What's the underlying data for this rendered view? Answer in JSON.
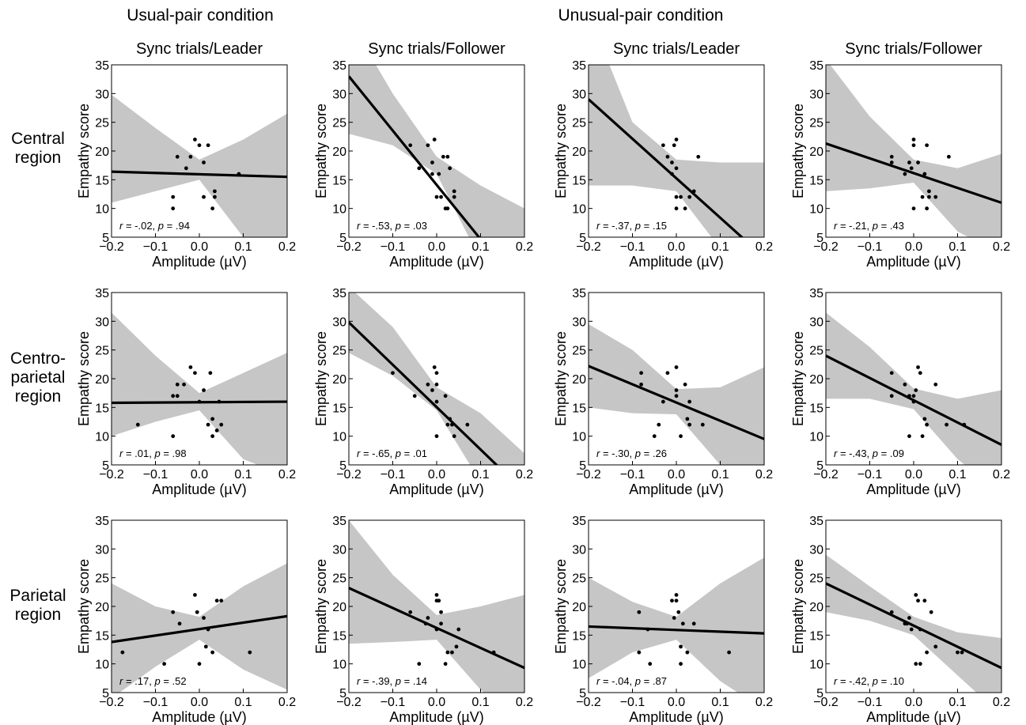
{
  "conditions": [
    "Usual-pair condition",
    "Unusual-pair condition"
  ],
  "rows": [
    {
      "line1": "Central",
      "line2": "region"
    },
    {
      "line1": "Centro-",
      "line2": "parietal",
      "line3": "region"
    },
    {
      "line1": "Parietal",
      "line2": "region"
    }
  ],
  "axis": {
    "xlabel": "Amplitude (µV)",
    "ylabel": "Empathy score",
    "xlim": [
      -0.2,
      0.2
    ],
    "ylim": [
      5,
      35
    ],
    "xticks": [
      "−0.2",
      "−0.1",
      "0.0",
      "0.1",
      "0.2"
    ],
    "yticks": [
      "5",
      "10",
      "15",
      "20",
      "25",
      "30",
      "35"
    ]
  },
  "colors": {
    "band": "#c6c6c6",
    "line": "#000000",
    "points": "#000000"
  },
  "chart_data": [
    {
      "type": "scatter",
      "title": "Sync trials/Leader",
      "row": 0,
      "col": 0,
      "fit": {
        "y_at_xmin": 16.4,
        "y_at_xmax": 15.5
      },
      "band": [
        [
          -0.2,
          11.0,
          29.8
        ],
        [
          -0.1,
          13.0,
          24.0
        ],
        [
          0.0,
          15.0,
          18.5
        ],
        [
          0.1,
          5.0,
          22.0
        ],
        [
          0.2,
          3.0,
          26.5
        ]
      ],
      "points": [
        [
          -0.06,
          10
        ],
        [
          -0.06,
          12
        ],
        [
          -0.05,
          19
        ],
        [
          -0.03,
          17
        ],
        [
          -0.02,
          19
        ],
        [
          -0.01,
          22
        ],
        [
          0.0,
          21
        ],
        [
          0.01,
          18
        ],
        [
          0.01,
          12
        ],
        [
          0.02,
          21
        ],
        [
          0.03,
          10
        ],
        [
          0.035,
          13
        ],
        [
          0.035,
          12
        ],
        [
          0.09,
          16
        ]
      ],
      "annotation": {
        "r_label": "r",
        "r_value": " = -.02, ",
        "p_label": "p",
        "p_value": " = .94"
      }
    },
    {
      "type": "scatter",
      "title": "Sync trials/Follower",
      "row": 0,
      "col": 1,
      "fit": {
        "y_at_xmin": 33,
        "y_at_xmax": -4.8
      },
      "band": [
        [
          -0.2,
          23.0,
          43.0
        ],
        [
          -0.1,
          21.0,
          30.0
        ],
        [
          0.0,
          16.0,
          19.0
        ],
        [
          0.1,
          1.0,
          14.0
        ],
        [
          0.2,
          -10.0,
          10.0
        ]
      ],
      "points": [
        [
          -0.06,
          21
        ],
        [
          -0.04,
          17
        ],
        [
          -0.02,
          21
        ],
        [
          -0.01,
          18
        ],
        [
          -0.01,
          16
        ],
        [
          -0.005,
          22
        ],
        [
          0.0,
          12
        ],
        [
          0.005,
          16
        ],
        [
          0.01,
          12
        ],
        [
          0.015,
          19
        ],
        [
          0.02,
          10
        ],
        [
          0.025,
          10
        ],
        [
          0.025,
          19
        ],
        [
          0.03,
          17
        ],
        [
          0.04,
          13
        ],
        [
          0.04,
          12
        ]
      ],
      "annotation": {
        "r_label": "r",
        "r_value": " = -.53, ",
        "p_label": "p",
        "p_value": " = .03"
      }
    },
    {
      "type": "scatter",
      "title": "Sync trials/Leader",
      "row": 0,
      "col": 2,
      "fit": {
        "y_at_xmin": 29,
        "y_at_xmax": 1.5
      },
      "band": [
        [
          -0.2,
          14.0,
          44.0
        ],
        [
          -0.1,
          14.0,
          25.0
        ],
        [
          0.0,
          13.0,
          18.5
        ],
        [
          0.1,
          3.0,
          18.0
        ],
        [
          0.2,
          -8.0,
          18.0
        ]
      ],
      "points": [
        [
          -0.03,
          21
        ],
        [
          -0.02,
          19
        ],
        [
          -0.01,
          18
        ],
        [
          -0.01,
          16
        ],
        [
          -0.005,
          21
        ],
        [
          0.0,
          22
        ],
        [
          0.0,
          17
        ],
        [
          0.0,
          10
        ],
        [
          0.0,
          12
        ],
        [
          0.01,
          12
        ],
        [
          0.02,
          10
        ],
        [
          0.03,
          12
        ],
        [
          0.04,
          13
        ],
        [
          0.05,
          19
        ]
      ],
      "annotation": {
        "r_label": "r",
        "r_value": " = -.37, ",
        "p_label": "p",
        "p_value": " = .15"
      }
    },
    {
      "type": "scatter",
      "title": "Sync trials/Follower",
      "row": 0,
      "col": 3,
      "fit": {
        "y_at_xmin": 21.3,
        "y_at_xmax": 11
      },
      "band": [
        [
          -0.2,
          13.0,
          36.0
        ],
        [
          -0.1,
          13.5,
          26.0
        ],
        [
          0.0,
          14.5,
          18.5
        ],
        [
          0.1,
          6.0,
          17.0
        ],
        [
          0.2,
          2.0,
          19.5
        ]
      ],
      "points": [
        [
          -0.05,
          18
        ],
        [
          -0.05,
          19
        ],
        [
          -0.02,
          16
        ],
        [
          -0.01,
          18
        ],
        [
          -0.005,
          17
        ],
        [
          0.0,
          22
        ],
        [
          0.0,
          21
        ],
        [
          0.0,
          10
        ],
        [
          0.01,
          18
        ],
        [
          0.02,
          12
        ],
        [
          0.025,
          16
        ],
        [
          0.03,
          21
        ],
        [
          0.03,
          10
        ],
        [
          0.035,
          13
        ],
        [
          0.035,
          12
        ],
        [
          0.05,
          12
        ],
        [
          0.08,
          19
        ]
      ],
      "annotation": {
        "r_label": "r",
        "r_value": " = -.21, ",
        "p_label": "p",
        "p_value": " = .43"
      }
    },
    {
      "type": "scatter",
      "title": "",
      "row": 1,
      "col": 0,
      "fit": {
        "y_at_xmin": 15.8,
        "y_at_xmax": 16.0
      },
      "band": [
        [
          -0.2,
          10.0,
          31.5
        ],
        [
          -0.1,
          12.5,
          24.0
        ],
        [
          0.0,
          14.5,
          17.5
        ],
        [
          0.1,
          6.0,
          21.0
        ],
        [
          0.2,
          3.0,
          24.5
        ]
      ],
      "points": [
        [
          -0.14,
          12
        ],
        [
          -0.06,
          10
        ],
        [
          -0.06,
          17
        ],
        [
          -0.05,
          19
        ],
        [
          -0.05,
          17
        ],
        [
          -0.035,
          19
        ],
        [
          -0.02,
          22
        ],
        [
          -0.01,
          21
        ],
        [
          0.0,
          16
        ],
        [
          0.01,
          18
        ],
        [
          0.02,
          12
        ],
        [
          0.025,
          21
        ],
        [
          0.03,
          10
        ],
        [
          0.03,
          13
        ],
        [
          0.04,
          11
        ],
        [
          0.045,
          16
        ],
        [
          0.05,
          12
        ]
      ],
      "annotation": {
        "r_label": "r",
        "r_value": " = .01, ",
        "p_label": "p",
        "p_value": " = .98"
      }
    },
    {
      "type": "scatter",
      "title": "",
      "row": 1,
      "col": 1,
      "fit": {
        "y_at_xmin": 29.8,
        "y_at_xmax": 0.3
      },
      "band": [
        [
          -0.2,
          24.5,
          36.0
        ],
        [
          -0.1,
          20.5,
          29.0
        ],
        [
          0.0,
          14.5,
          18.5
        ],
        [
          0.1,
          2.0,
          14.0
        ],
        [
          0.2,
          -10.0,
          7.0
        ]
      ],
      "points": [
        [
          -0.1,
          21
        ],
        [
          -0.05,
          17
        ],
        [
          -0.02,
          19
        ],
        [
          -0.01,
          18
        ],
        [
          -0.005,
          22
        ],
        [
          0.0,
          21
        ],
        [
          0.0,
          19
        ],
        [
          0.0,
          16
        ],
        [
          0.0,
          10
        ],
        [
          0.02,
          17
        ],
        [
          0.025,
          12
        ],
        [
          0.03,
          13
        ],
        [
          0.035,
          12
        ],
        [
          0.04,
          10
        ],
        [
          0.07,
          12
        ]
      ],
      "annotation": {
        "r_label": "r",
        "r_value": " = -.65, ",
        "p_label": "p",
        "p_value": " = .01"
      }
    },
    {
      "type": "scatter",
      "title": "",
      "row": 1,
      "col": 2,
      "fit": {
        "y_at_xmin": 22.2,
        "y_at_xmax": 9.5
      },
      "band": [
        [
          -0.2,
          15.0,
          29.5
        ],
        [
          -0.1,
          14.0,
          25.0
        ],
        [
          0.0,
          13.8,
          18.2
        ],
        [
          0.1,
          5.0,
          18.5
        ],
        [
          0.2,
          -1.0,
          22.0
        ]
      ],
      "points": [
        [
          -0.08,
          21
        ],
        [
          -0.08,
          19
        ],
        [
          -0.05,
          10
        ],
        [
          -0.04,
          12
        ],
        [
          -0.03,
          16
        ],
        [
          -0.02,
          21
        ],
        [
          0.0,
          22
        ],
        [
          0.0,
          18
        ],
        [
          0.0,
          17
        ],
        [
          0.01,
          10
        ],
        [
          0.02,
          19
        ],
        [
          0.025,
          13
        ],
        [
          0.03,
          16
        ],
        [
          0.03,
          12
        ],
        [
          0.06,
          12
        ]
      ],
      "annotation": {
        "r_label": "r",
        "r_value": " = -.30, ",
        "p_label": "p",
        "p_value": " = .26"
      }
    },
    {
      "type": "scatter",
      "title": "",
      "row": 1,
      "col": 3,
      "fit": {
        "y_at_xmin": 24,
        "y_at_xmax": 8.5
      },
      "band": [
        [
          -0.2,
          16.5,
          31.5
        ],
        [
          -0.1,
          16.5,
          25.5
        ],
        [
          0.0,
          14.7,
          18.3
        ],
        [
          0.1,
          6.0,
          16.5
        ],
        [
          0.2,
          0.0,
          18.0
        ]
      ],
      "points": [
        [
          -0.05,
          21
        ],
        [
          -0.05,
          17
        ],
        [
          -0.02,
          19
        ],
        [
          -0.01,
          10
        ],
        [
          -0.01,
          17
        ],
        [
          0.0,
          16
        ],
        [
          0.0,
          17
        ],
        [
          0.005,
          18
        ],
        [
          0.01,
          22
        ],
        [
          0.015,
          21
        ],
        [
          0.02,
          10
        ],
        [
          0.025,
          13
        ],
        [
          0.03,
          12
        ],
        [
          0.05,
          19
        ],
        [
          0.075,
          12
        ],
        [
          0.115,
          12
        ]
      ],
      "annotation": {
        "r_label": "r",
        "r_value": " = -.43, ",
        "p_label": "p",
        "p_value": " = .09"
      }
    },
    {
      "type": "scatter",
      "title": "",
      "row": 2,
      "col": 0,
      "fit": {
        "y_at_xmin": 13.8,
        "y_at_xmax": 18.3
      },
      "band": [
        [
          -0.2,
          4.0,
          24.0
        ],
        [
          -0.1,
          9.5,
          20.0
        ],
        [
          0.0,
          14.2,
          18.2
        ],
        [
          0.1,
          9.0,
          23.5
        ],
        [
          0.2,
          5.5,
          27.5
        ]
      ],
      "points": [
        [
          -0.175,
          12
        ],
        [
          -0.08,
          10
        ],
        [
          -0.06,
          19
        ],
        [
          -0.045,
          17
        ],
        [
          -0.01,
          22
        ],
        [
          -0.005,
          19
        ],
        [
          0.0,
          10
        ],
        [
          0.01,
          18
        ],
        [
          0.015,
          13
        ],
        [
          0.02,
          16
        ],
        [
          0.03,
          12
        ],
        [
          0.04,
          21
        ],
        [
          0.05,
          21
        ],
        [
          0.115,
          12
        ]
      ],
      "annotation": {
        "r_label": "r",
        "r_value": " = .17, ",
        "p_label": "p",
        "p_value": " = .52"
      }
    },
    {
      "type": "scatter",
      "title": "",
      "row": 2,
      "col": 1,
      "fit": {
        "y_at_xmin": 23.2,
        "y_at_xmax": 9.3
      },
      "band": [
        [
          -0.2,
          13.5,
          35.0
        ],
        [
          -0.1,
          13.8,
          25.5
        ],
        [
          0.0,
          14.2,
          18.5
        ],
        [
          0.1,
          5.5,
          20.0
        ],
        [
          0.2,
          -1.0,
          22.0
        ]
      ],
      "points": [
        [
          -0.06,
          19
        ],
        [
          -0.04,
          10
        ],
        [
          -0.025,
          17
        ],
        [
          -0.02,
          18
        ],
        [
          0.0,
          22
        ],
        [
          0.0,
          21
        ],
        [
          0.0,
          16
        ],
        [
          0.005,
          21
        ],
        [
          0.01,
          17
        ],
        [
          0.01,
          19
        ],
        [
          0.02,
          10
        ],
        [
          0.025,
          12
        ],
        [
          0.035,
          12
        ],
        [
          0.045,
          13
        ],
        [
          0.05,
          16
        ],
        [
          0.13,
          12
        ]
      ],
      "annotation": {
        "r_label": "r",
        "r_value": " = -.39, ",
        "p_label": "p",
        "p_value": " = .14"
      }
    },
    {
      "type": "scatter",
      "title": "",
      "row": 2,
      "col": 2,
      "fit": {
        "y_at_xmin": 16.5,
        "y_at_xmax": 15.3
      },
      "band": [
        [
          -0.2,
          7.5,
          25.0
        ],
        [
          -0.1,
          12.0,
          20.8
        ],
        [
          0.0,
          14.2,
          18.2
        ],
        [
          0.1,
          7.0,
          24.0
        ],
        [
          0.2,
          2.0,
          28.5
        ]
      ],
      "points": [
        [
          -0.085,
          19
        ],
        [
          -0.085,
          12
        ],
        [
          -0.065,
          16
        ],
        [
          -0.06,
          10
        ],
        [
          -0.01,
          21
        ],
        [
          -0.005,
          18
        ],
        [
          0.0,
          22
        ],
        [
          0.0,
          21
        ],
        [
          0.005,
          19
        ],
        [
          0.01,
          13
        ],
        [
          0.01,
          10
        ],
        [
          0.015,
          17
        ],
        [
          0.025,
          12
        ],
        [
          0.04,
          17
        ],
        [
          0.12,
          12
        ]
      ],
      "annotation": {
        "r_label": "r",
        "r_value": " = -.04, ",
        "p_label": "p",
        "p_value": " = .87"
      }
    },
    {
      "type": "scatter",
      "title": "",
      "row": 2,
      "col": 3,
      "fit": {
        "y_at_xmin": 24,
        "y_at_xmax": 9.3
      },
      "band": [
        [
          -0.2,
          19.0,
          29.0
        ],
        [
          -0.1,
          17.5,
          23.5
        ],
        [
          0.0,
          15.0,
          18.2
        ],
        [
          0.1,
          8.0,
          15.5
        ],
        [
          0.2,
          1.0,
          14.5
        ]
      ],
      "points": [
        [
          -0.05,
          19
        ],
        [
          -0.02,
          17
        ],
        [
          -0.015,
          17
        ],
        [
          -0.01,
          18
        ],
        [
          -0.005,
          16
        ],
        [
          0.005,
          22
        ],
        [
          0.005,
          10
        ],
        [
          0.01,
          21
        ],
        [
          0.015,
          16
        ],
        [
          0.015,
          10
        ],
        [
          0.025,
          21
        ],
        [
          0.03,
          12
        ],
        [
          0.04,
          19
        ],
        [
          0.05,
          13
        ],
        [
          0.1,
          12
        ],
        [
          0.11,
          12
        ]
      ],
      "annotation": {
        "r_label": "r",
        "r_value": " = -.42, ",
        "p_label": "p",
        "p_value": " = .10"
      }
    }
  ]
}
